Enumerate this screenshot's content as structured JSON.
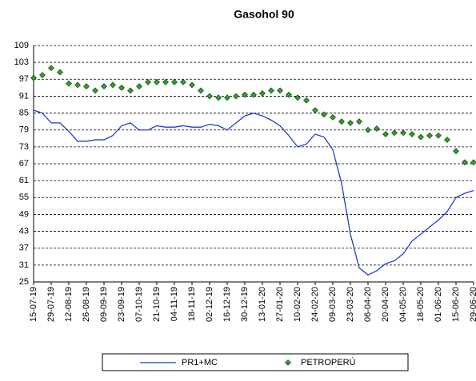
{
  "chart_data": {
    "type": "line",
    "title": "Gasohol 90",
    "categories": [
      "15-07-19",
      null,
      "29-07-19",
      null,
      "12-08-19",
      null,
      "26-08-19",
      null,
      "09-09-19",
      null,
      "23-09-19",
      null,
      "07-10-19",
      null,
      "21-10-19",
      null,
      "04-11-19",
      null,
      "18-11-19",
      null,
      "02-12-19",
      null,
      "16-12-19",
      null,
      "30-12-19",
      null,
      "13-01-20",
      null,
      "27-01-20",
      null,
      "10-02-20",
      null,
      "24-02-20",
      null,
      "09-03-20",
      null,
      "23-03-20",
      null,
      "06-04-20",
      null,
      "20-04-20",
      null,
      "04-05-20",
      null,
      "18-05-20",
      null,
      "01-06-20",
      null,
      "15-06-20",
      null,
      "29-06-20"
    ],
    "series": [
      {
        "name": "PR1+MC",
        "color": "#1f3fcf",
        "style": "line",
        "values": [
          86,
          85,
          81.5,
          81.5,
          78.5,
          75,
          75,
          75.5,
          75.5,
          77,
          80.5,
          81.5,
          79,
          79,
          80.5,
          80,
          80,
          80.5,
          80,
          80,
          81,
          80.5,
          79,
          81.5,
          84,
          85,
          84,
          82.5,
          80.5,
          77,
          73,
          74,
          77.5,
          76.5,
          72,
          60,
          42,
          30,
          27.5,
          29,
          31.5,
          32.5,
          35,
          39.5,
          42,
          44.5,
          47,
          50,
          55,
          56.5,
          57.5
        ]
      },
      {
        "name": "PETROPERÚ",
        "color": "#2e9e2e",
        "style": "marker",
        "values": [
          97.5,
          98.5,
          101,
          99.5,
          95.5,
          95,
          94.5,
          93,
          94.5,
          95,
          94,
          93,
          94.5,
          96,
          96,
          96,
          96,
          96,
          95,
          93,
          91,
          90.5,
          90.5,
          91,
          91.5,
          91.5,
          92,
          93,
          93,
          91.5,
          90.5,
          89.5,
          86,
          84.5,
          83.5,
          82,
          81.5,
          82,
          79,
          79.5,
          77.5,
          78,
          78,
          77.5,
          76.5,
          77,
          77,
          75.5,
          71.5,
          67.5,
          67.5
        ]
      }
    ],
    "ylim": [
      25,
      109
    ],
    "yticks": [
      25,
      31,
      37,
      43,
      49,
      55,
      61,
      67,
      73,
      79,
      85,
      91,
      97,
      103,
      109
    ],
    "grid": true
  }
}
